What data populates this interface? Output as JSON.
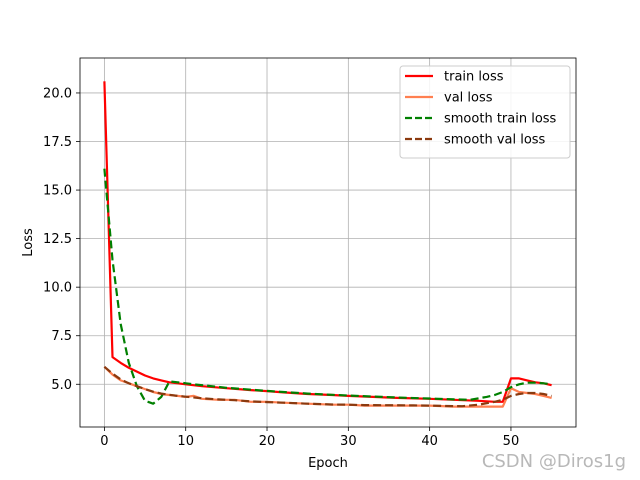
{
  "chart_data": {
    "type": "line",
    "title": "",
    "xlabel": "Epoch",
    "ylabel": "Loss",
    "xlim": [
      -3,
      58
    ],
    "ylim": [
      2.8,
      21.8
    ],
    "xticks": [
      0,
      10,
      20,
      30,
      40,
      50
    ],
    "yticks": [
      5.0,
      7.5,
      10.0,
      12.5,
      15.0,
      17.5,
      20.0
    ],
    "ytick_labels": [
      "5.0",
      "7.5",
      "10.0",
      "12.5",
      "15.0",
      "17.5",
      "20.0"
    ],
    "grid": true,
    "legend_position": "top-right",
    "series": [
      {
        "name": "train loss",
        "color": "#ff0000",
        "dash": "solid",
        "points": [
          [
            0,
            20.6
          ],
          [
            1,
            6.4
          ],
          [
            2,
            6.1
          ],
          [
            3,
            5.85
          ],
          [
            4,
            5.65
          ],
          [
            5,
            5.45
          ],
          [
            6,
            5.3
          ],
          [
            7,
            5.2
          ],
          [
            8,
            5.1
          ],
          [
            9,
            5.05
          ],
          [
            10,
            5.0
          ],
          [
            12,
            4.9
          ],
          [
            15,
            4.8
          ],
          [
            18,
            4.7
          ],
          [
            20,
            4.65
          ],
          [
            22,
            4.58
          ],
          [
            25,
            4.5
          ],
          [
            28,
            4.45
          ],
          [
            30,
            4.4
          ],
          [
            33,
            4.35
          ],
          [
            36,
            4.3
          ],
          [
            40,
            4.25
          ],
          [
            43,
            4.2
          ],
          [
            46,
            4.15
          ],
          [
            48,
            4.1
          ],
          [
            49,
            4.1
          ],
          [
            50,
            5.3
          ],
          [
            51,
            5.3
          ],
          [
            52,
            5.2
          ],
          [
            53,
            5.1
          ],
          [
            54,
            5.05
          ],
          [
            55,
            4.95
          ]
        ]
      },
      {
        "name": "val loss",
        "color": "#ff7f50",
        "dash": "solid",
        "points": [
          [
            0,
            5.9
          ],
          [
            1,
            5.5
          ],
          [
            2,
            5.2
          ],
          [
            3,
            5.05
          ],
          [
            4,
            4.9
          ],
          [
            5,
            4.75
          ],
          [
            6,
            4.6
          ],
          [
            7,
            4.5
          ],
          [
            8,
            4.45
          ],
          [
            9,
            4.4
          ],
          [
            10,
            4.35
          ],
          [
            11,
            4.4
          ],
          [
            12,
            4.25
          ],
          [
            14,
            4.2
          ],
          [
            16,
            4.2
          ],
          [
            18,
            4.1
          ],
          [
            20,
            4.1
          ],
          [
            22,
            4.05
          ],
          [
            25,
            4.0
          ],
          [
            28,
            3.95
          ],
          [
            30,
            3.95
          ],
          [
            32,
            3.9
          ],
          [
            35,
            3.9
          ],
          [
            38,
            3.9
          ],
          [
            40,
            3.9
          ],
          [
            43,
            3.85
          ],
          [
            45,
            3.85
          ],
          [
            47,
            3.85
          ],
          [
            48,
            3.85
          ],
          [
            49,
            3.85
          ],
          [
            50,
            4.8
          ],
          [
            51,
            4.6
          ],
          [
            52,
            4.55
          ],
          [
            53,
            4.5
          ],
          [
            54,
            4.4
          ],
          [
            55,
            4.3
          ]
        ]
      },
      {
        "name": "smooth train loss",
        "color": "#008000",
        "dash": "dashed",
        "points": [
          [
            0,
            16.1
          ],
          [
            1,
            11.4
          ],
          [
            2,
            8.1
          ],
          [
            3,
            6.1
          ],
          [
            4,
            4.9
          ],
          [
            5,
            4.15
          ],
          [
            6,
            4.0
          ],
          [
            7,
            4.35
          ],
          [
            8,
            5.15
          ],
          [
            9,
            5.1
          ],
          [
            10,
            5.05
          ],
          [
            12,
            4.95
          ],
          [
            15,
            4.82
          ],
          [
            18,
            4.72
          ],
          [
            20,
            4.66
          ],
          [
            22,
            4.6
          ],
          [
            25,
            4.52
          ],
          [
            28,
            4.46
          ],
          [
            30,
            4.42
          ],
          [
            33,
            4.37
          ],
          [
            36,
            4.32
          ],
          [
            40,
            4.27
          ],
          [
            43,
            4.22
          ],
          [
            45,
            4.2
          ],
          [
            47,
            4.35
          ],
          [
            48,
            4.45
          ],
          [
            49,
            4.6
          ],
          [
            50,
            4.85
          ],
          [
            51,
            5.0
          ],
          [
            52,
            5.08
          ],
          [
            53,
            5.08
          ],
          [
            54,
            5.05
          ],
          [
            55,
            5.0
          ]
        ]
      },
      {
        "name": "smooth val loss",
        "color": "#8b3a0f",
        "dash": "dashed",
        "points": [
          [
            0,
            5.9
          ],
          [
            1,
            5.55
          ],
          [
            2,
            5.25
          ],
          [
            3,
            5.05
          ],
          [
            4,
            4.9
          ],
          [
            5,
            4.75
          ],
          [
            6,
            4.62
          ],
          [
            7,
            4.52
          ],
          [
            8,
            4.46
          ],
          [
            9,
            4.4
          ],
          [
            10,
            4.36
          ],
          [
            12,
            4.28
          ],
          [
            14,
            4.22
          ],
          [
            16,
            4.18
          ],
          [
            18,
            4.12
          ],
          [
            20,
            4.08
          ],
          [
            22,
            4.05
          ],
          [
            25,
            4.0
          ],
          [
            28,
            3.96
          ],
          [
            30,
            3.95
          ],
          [
            32,
            3.93
          ],
          [
            35,
            3.92
          ],
          [
            38,
            3.91
          ],
          [
            40,
            3.9
          ],
          [
            42,
            3.88
          ],
          [
            44,
            3.87
          ],
          [
            46,
            3.95
          ],
          [
            48,
            4.1
          ],
          [
            49,
            4.2
          ],
          [
            50,
            4.4
          ],
          [
            51,
            4.5
          ],
          [
            52,
            4.55
          ],
          [
            53,
            4.55
          ],
          [
            54,
            4.5
          ],
          [
            55,
            4.4
          ]
        ]
      }
    ]
  },
  "watermark": "CSDN @Diros1g"
}
